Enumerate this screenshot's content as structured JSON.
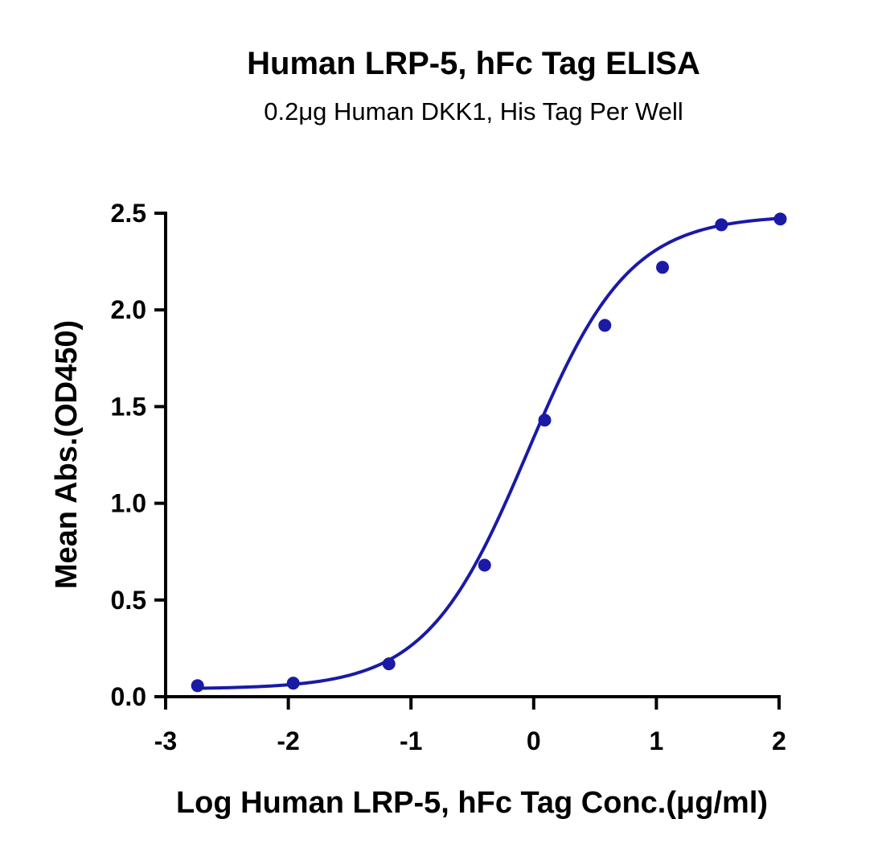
{
  "chart_data": {
    "type": "scatter",
    "title": "Human LRP-5, hFc Tag ELISA",
    "subtitle": "0.2μg Human DKK1, His Tag Per Well",
    "xlabel": "Log Human LRP-5, hFc Tag Conc.(μg/ml)",
    "ylabel": "Mean Abs.(OD450)",
    "xlim": [
      -3,
      2
    ],
    "ylim": [
      0,
      2.5
    ],
    "x_ticks": [
      -3,
      -2,
      -1,
      0,
      1,
      2
    ],
    "x_tick_labels": [
      "-3",
      "-2",
      "-1",
      "0",
      "1",
      "2"
    ],
    "y_ticks": [
      0,
      0.5,
      1.0,
      1.5,
      2.0,
      2.5
    ],
    "y_tick_labels": [
      "0.0",
      "0.5",
      "1.0",
      "1.5",
      "2.0",
      "2.5"
    ],
    "grid": false,
    "color": "#1a1aa6",
    "series": [
      {
        "type": "scatter",
        "x": [
          -2.74,
          -1.96,
          -1.18,
          -0.4,
          0.09,
          0.58,
          1.05,
          1.53,
          2.01
        ],
        "y": [
          0.057,
          0.07,
          0.17,
          0.68,
          1.43,
          1.92,
          2.22,
          2.44,
          2.47
        ]
      },
      {
        "type": "line",
        "fit": "four-parameter logistic",
        "bottom": 0.04,
        "top": 2.49,
        "log_ec50": -0.05,
        "hill_slope": 1.05,
        "x_range": [
          -2.74,
          2.01
        ]
      }
    ]
  }
}
